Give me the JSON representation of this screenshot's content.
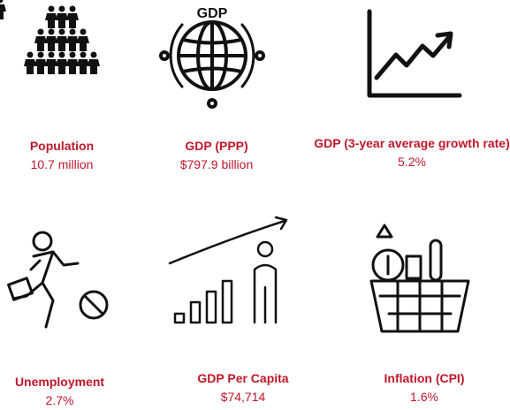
{
  "items": [
    {
      "label": "Population",
      "value": "10.7 million"
    },
    {
      "label": "GDP (PPP)",
      "value": "$797.9 billion"
    },
    {
      "label": "GDP (3-year average growth rate)",
      "value": "5.2%"
    },
    {
      "label": "Unemployment",
      "value": "2.7%"
    },
    {
      "label": "GDP Per Capita",
      "value": "$74,714"
    },
    {
      "label": "Inflation (CPI)",
      "value": "1.6%"
    }
  ],
  "icons": {
    "gdp_badge": "GDP"
  }
}
